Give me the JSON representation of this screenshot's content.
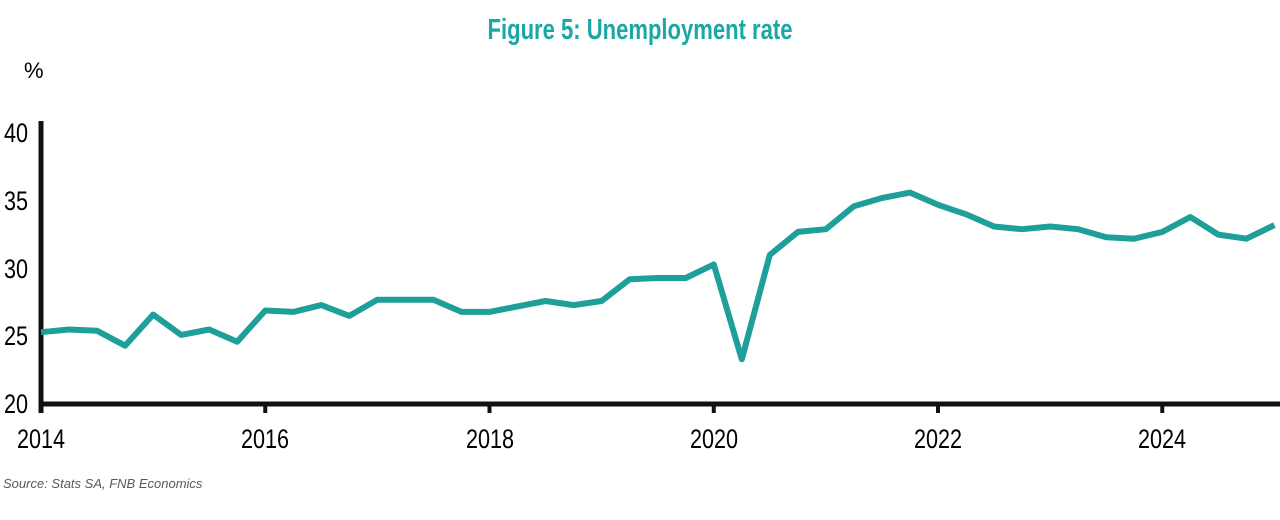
{
  "title": "Figure 5: Unemployment rate",
  "y_axis_unit": "%",
  "source": "Source: Stats SA, FNB Economics",
  "colors": {
    "title_teal": "#1ba7a7",
    "line_teal": "#1f9f9a",
    "axis_black": "#111111",
    "source_gray": "#595959"
  },
  "chart_data": {
    "type": "line",
    "title": "Figure 5: Unemployment rate",
    "ylabel": "%",
    "xlabel": "",
    "grid": false,
    "legend": "none",
    "ylim": [
      20,
      40
    ],
    "xlim": [
      2014,
      2025.05
    ],
    "y_ticks": [
      20,
      25,
      30,
      35,
      40
    ],
    "x_ticks": [
      2014,
      2016,
      2018,
      2020,
      2022,
      2024
    ],
    "series": [
      {
        "name": "Unemployment rate (%)",
        "frequency": "quarterly",
        "x": [
          2014.0,
          2014.25,
          2014.5,
          2014.75,
          2015.0,
          2015.25,
          2015.5,
          2015.75,
          2016.0,
          2016.25,
          2016.5,
          2016.75,
          2017.0,
          2017.25,
          2017.5,
          2017.75,
          2018.0,
          2018.25,
          2018.5,
          2018.75,
          2019.0,
          2019.25,
          2019.5,
          2019.75,
          2020.0,
          2020.25,
          2020.5,
          2020.75,
          2021.0,
          2021.25,
          2021.5,
          2021.75,
          2022.0,
          2022.25,
          2022.5,
          2022.75,
          2023.0,
          2023.25,
          2023.5,
          2023.75,
          2024.0,
          2024.25,
          2024.5,
          2024.75,
          2025.0
        ],
        "values": [
          25.3,
          25.5,
          25.4,
          24.3,
          26.6,
          25.1,
          25.5,
          24.6,
          26.9,
          26.8,
          27.3,
          26.5,
          27.7,
          27.7,
          27.7,
          26.8,
          26.8,
          27.2,
          27.6,
          27.3,
          27.6,
          29.2,
          29.3,
          29.3,
          30.3,
          23.3,
          31.0,
          32.7,
          32.9,
          34.6,
          35.2,
          35.6,
          34.7,
          34.0,
          33.1,
          32.9,
          33.1,
          32.9,
          32.3,
          32.2,
          32.7,
          33.8,
          32.5,
          32.2,
          33.2
        ]
      }
    ],
    "source": "Source: Stats SA, FNB Economics"
  }
}
